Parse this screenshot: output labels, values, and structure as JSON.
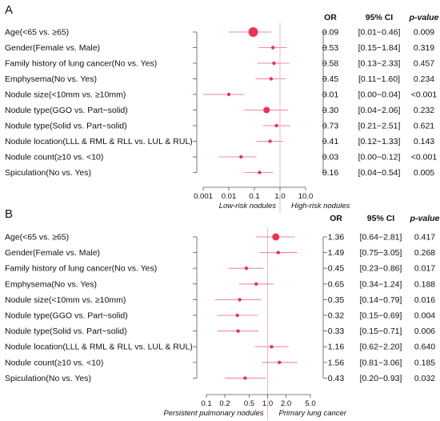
{
  "chart_data": [
    {
      "type": "forest",
      "panel": "A",
      "scale": "log",
      "xlim": [
        0.001,
        10.0
      ],
      "reference": 1.0,
      "xticks": [
        "0.001",
        "0.01",
        "0.1",
        "1.0",
        "10.0"
      ],
      "xtick_values": [
        0.001,
        0.01,
        0.1,
        1.0,
        10.0
      ],
      "left_caption": "Low-risk nodules",
      "right_caption": "High-risk nodules",
      "headers": {
        "or": "OR",
        "ci": "95% CI",
        "p": "p-value"
      },
      "rows": [
        {
          "label": "Age(<65 vs. ≥65)",
          "or": 0.09,
          "lo": 0.01,
          "hi": 0.46,
          "or_text": "0.09",
          "ci_text": "[0.01−0.46]",
          "p_text": "0.009",
          "size": 6
        },
        {
          "label": "Gender(Female vs. Male)",
          "or": 0.53,
          "lo": 0.15,
          "hi": 1.84,
          "or_text": "0.53",
          "ci_text": "[0.15−1.84]",
          "p_text": "0.319",
          "size": 2.2
        },
        {
          "label": "Family history of lung cancer(No vs. Yes)",
          "or": 0.58,
          "lo": 0.13,
          "hi": 2.33,
          "or_text": "0.58",
          "ci_text": "[0.13−2.33]",
          "p_text": "0.457",
          "size": 2.2
        },
        {
          "label": "Emphysema(No vs. Yes)",
          "or": 0.45,
          "lo": 0.11,
          "hi": 1.6,
          "or_text": "0.45",
          "ci_text": "[0.11−1.60]",
          "p_text": "0.234",
          "size": 2.2
        },
        {
          "label": "Nodule size(<10mm vs. ≥10mm)",
          "or": 0.01,
          "lo": 0.0006,
          "hi": 0.04,
          "or_text": "0.01",
          "ci_text": "[0.00−0.04]",
          "p_text": "<0.001",
          "size": 2.2
        },
        {
          "label": "Nodule type(GGO vs. Part−solid)",
          "or": 0.3,
          "lo": 0.04,
          "hi": 2.06,
          "or_text": "0.30",
          "ci_text": "[0.04−2.06]",
          "p_text": "0.232",
          "size": 4
        },
        {
          "label": "Nodule type(Solid vs. Part−solid)",
          "or": 0.73,
          "lo": 0.21,
          "hi": 2.51,
          "or_text": "0.73",
          "ci_text": "[0.21−2.51]",
          "p_text": "0.621",
          "size": 2.2
        },
        {
          "label": "Nodule location(LLL & RML & RLL vs. LUL & RUL)",
          "or": 0.41,
          "lo": 0.12,
          "hi": 1.33,
          "or_text": "0.41",
          "ci_text": "[0.12−1.33]",
          "p_text": "0.143",
          "size": 2.2
        },
        {
          "label": "Nodule count(≥10 vs. <10)",
          "or": 0.03,
          "lo": 0.004,
          "hi": 0.12,
          "or_text": "0.03",
          "ci_text": "[0.00−0.12]",
          "p_text": "<0.001",
          "size": 2.2
        },
        {
          "label": "Spiculation(No vs. Yes)",
          "or": 0.16,
          "lo": 0.04,
          "hi": 0.54,
          "or_text": "0.16",
          "ci_text": "[0.04−0.54]",
          "p_text": "0.005",
          "size": 2.2
        }
      ]
    },
    {
      "type": "forest",
      "panel": "B",
      "scale": "log",
      "xlim": [
        0.1,
        5.0
      ],
      "reference": 1.0,
      "xticks": [
        "0.1",
        "0.2",
        "0.5",
        "1.0",
        "2.0",
        "5.0"
      ],
      "xtick_values": [
        0.1,
        0.2,
        0.5,
        1.0,
        2.0,
        5.0
      ],
      "left_caption": "Persistent pulmonary nodules",
      "right_caption": "Primary lung cancer",
      "headers": {
        "or": "OR",
        "ci": "95% CI",
        "p": "p-value"
      },
      "rows": [
        {
          "label": "Age(<65 vs. ≥65)",
          "or": 1.36,
          "lo": 0.64,
          "hi": 2.81,
          "or_text": "1.36",
          "ci_text": "[0.64−2.81]",
          "p_text": "0.417",
          "size": 4.5
        },
        {
          "label": "Gender(Female vs. Male)",
          "or": 1.49,
          "lo": 0.75,
          "hi": 3.05,
          "or_text": "1.49",
          "ci_text": "[0.75−3.05]",
          "p_text": "0.268",
          "size": 2.2
        },
        {
          "label": "Family history of lung cancer(No vs. Yes)",
          "or": 0.45,
          "lo": 0.23,
          "hi": 0.86,
          "or_text": "0.45",
          "ci_text": "[0.23−0.86]",
          "p_text": "0.017",
          "size": 2.2
        },
        {
          "label": "Emphysema(No vs. Yes)",
          "or": 0.65,
          "lo": 0.34,
          "hi": 1.24,
          "or_text": "0.65",
          "ci_text": "[0.34−1.24]",
          "p_text": "0.188",
          "size": 2.2
        },
        {
          "label": "Nodule size(<10mm vs. ≥10mm)",
          "or": 0.35,
          "lo": 0.14,
          "hi": 0.79,
          "or_text": "0.35",
          "ci_text": "[0.14−0.79]",
          "p_text": "0.016",
          "size": 2.2
        },
        {
          "label": "Nodule type(GGO vs. Part−solid)",
          "or": 0.32,
          "lo": 0.15,
          "hi": 0.69,
          "or_text": "0.32",
          "ci_text": "[0.15−0.69]",
          "p_text": "0.004",
          "size": 2.2
        },
        {
          "label": "Nodule type(Solid vs. Part−solid)",
          "or": 0.33,
          "lo": 0.15,
          "hi": 0.71,
          "or_text": "0.33",
          "ci_text": "[0.15−0.71]",
          "p_text": "0.006",
          "size": 2.2
        },
        {
          "label": "Nodule location(LLL & RML & RLL vs. LUL & RUL)",
          "or": 1.16,
          "lo": 0.62,
          "hi": 2.2,
          "or_text": "1.16",
          "ci_text": "[0.62−2.20]",
          "p_text": "0.640",
          "size": 2.2
        },
        {
          "label": "Nodule count(≥10 vs. <10)",
          "or": 1.56,
          "lo": 0.81,
          "hi": 3.06,
          "or_text": "1.56",
          "ci_text": "[0.81−3.06]",
          "p_text": "0.185",
          "size": 2.2
        },
        {
          "label": "Spiculation(No vs. Yes)",
          "or": 0.43,
          "lo": 0.2,
          "hi": 0.93,
          "or_text": "0.43",
          "ci_text": "[0.20−0.93]",
          "p_text": "0.032",
          "size": 2.2
        }
      ]
    }
  ],
  "style": {
    "point_color": "#e8345a",
    "ci_color": "#f08aa0",
    "refline_color": "#f2b8c4",
    "axis_color": "#555555"
  }
}
